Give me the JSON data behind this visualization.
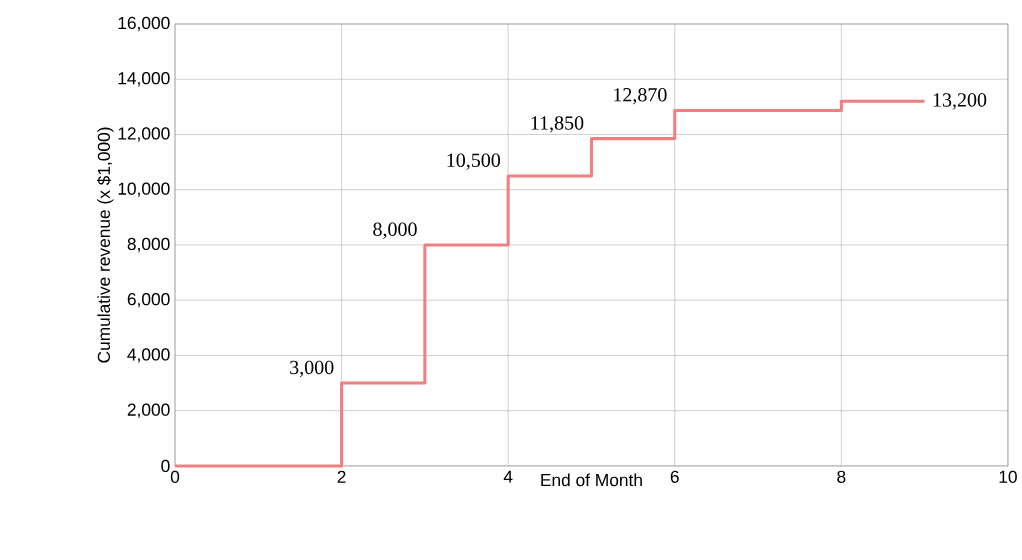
{
  "chart_data": {
    "type": "step",
    "xlabel": "End of Month",
    "ylabel": "Cumulative revenue (x $1,000)",
    "x": [
      0,
      2,
      3,
      4,
      5,
      6,
      8,
      9
    ],
    "values": [
      0,
      3000,
      8000,
      10500,
      11850,
      12870,
      13200,
      13200
    ],
    "color": "#f08080",
    "xlim": [
      0,
      10
    ],
    "xticks": [
      0,
      2,
      4,
      6,
      8,
      10
    ],
    "ylim": [
      0,
      16000
    ],
    "yticks": [
      {
        "value": 0,
        "label": "0"
      },
      {
        "value": 2000,
        "label": "2,000"
      },
      {
        "value": 4000,
        "label": "4,000"
      },
      {
        "value": 6000,
        "label": "6,000"
      },
      {
        "value": 8000,
        "label": "8,000"
      },
      {
        "value": 10000,
        "label": "10,000"
      },
      {
        "value": 12000,
        "label": "12,000"
      },
      {
        "value": 14000,
        "label": "14,000"
      },
      {
        "value": 16000,
        "label": "16,000"
      }
    ],
    "grid": true,
    "annotations": [
      {
        "text": "3,000",
        "x": 2,
        "y": 3000
      },
      {
        "text": "8,000",
        "x": 3,
        "y": 8000
      },
      {
        "text": "10,500",
        "x": 4,
        "y": 10500
      },
      {
        "text": "11,850",
        "x": 5,
        "y": 11850
      },
      {
        "text": "12,870",
        "x": 6,
        "y": 12870
      },
      {
        "text": "13,200",
        "x": 9,
        "y": 13200
      }
    ]
  }
}
